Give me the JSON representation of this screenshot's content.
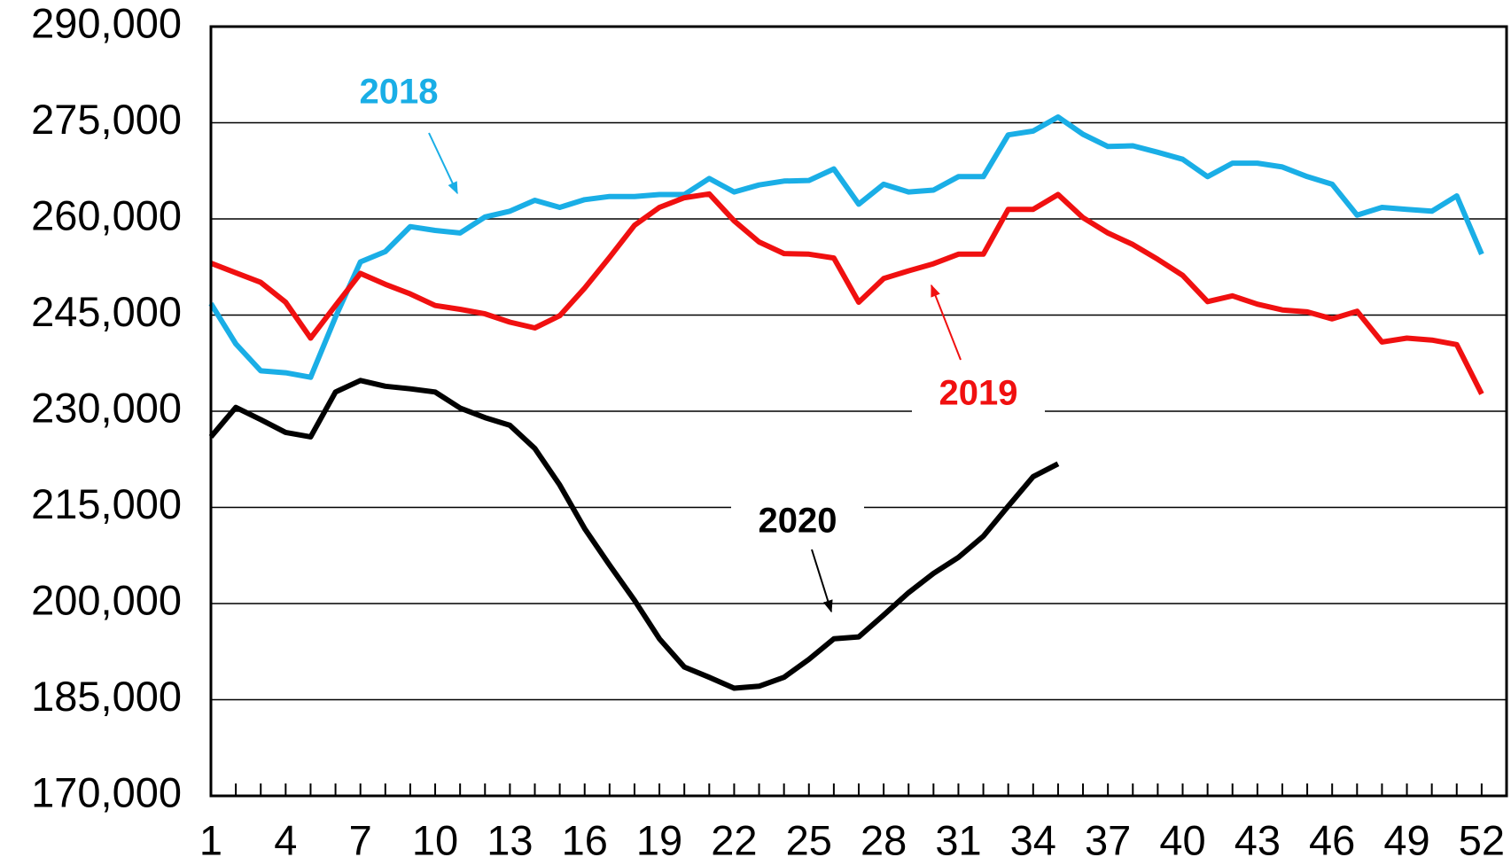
{
  "chart_data": {
    "type": "line",
    "x": [
      1,
      2,
      3,
      4,
      5,
      6,
      7,
      8,
      9,
      10,
      11,
      12,
      13,
      14,
      15,
      16,
      17,
      18,
      19,
      20,
      21,
      22,
      23,
      24,
      25,
      26,
      27,
      28,
      29,
      30,
      31,
      32,
      33,
      34,
      35,
      36,
      37,
      38,
      39,
      40,
      41,
      42,
      43,
      44,
      45,
      46,
      47,
      48,
      49,
      50,
      51,
      52
    ],
    "xlim": [
      1,
      53
    ],
    "xticks": [
      1,
      4,
      7,
      10,
      13,
      16,
      19,
      22,
      25,
      28,
      31,
      34,
      37,
      40,
      43,
      46,
      49,
      52
    ],
    "ylim": [
      170000,
      290000
    ],
    "yticks": [
      {
        "value": 170000,
        "label": "170,000"
      },
      {
        "value": 185000,
        "label": "185,000"
      },
      {
        "value": 200000,
        "label": "200,000"
      },
      {
        "value": 215000,
        "label": "215,000"
      },
      {
        "value": 230000,
        "label": "230,000"
      },
      {
        "value": 245000,
        "label": "245,000"
      },
      {
        "value": 260000,
        "label": "260,000"
      },
      {
        "value": 275000,
        "label": "275,000"
      },
      {
        "value": 290000,
        "label": "290,000"
      }
    ],
    "grid": true,
    "series": [
      {
        "name": "2018",
        "color": "#1aaee6",
        "values": [
          246800,
          240500,
          236300,
          236000,
          235300,
          244700,
          253300,
          254900,
          258800,
          258200,
          257800,
          260300,
          261200,
          262900,
          261800,
          263000,
          263500,
          263500,
          263800,
          263800,
          266300,
          264200,
          265300,
          265900,
          266000,
          267800,
          262300,
          265400,
          264200,
          264500,
          266600,
          266600,
          273100,
          273700,
          275900,
          273200,
          271300,
          271400,
          270400,
          269300,
          266600,
          268700,
          268700,
          268100,
          266600,
          265400,
          260600,
          261800,
          261500,
          261200,
          263600,
          254500
        ]
      },
      {
        "name": "2019",
        "color": "#f01010",
        "values": [
          253100,
          251600,
          250100,
          247000,
          241400,
          246500,
          251500,
          249800,
          248300,
          246500,
          245900,
          245200,
          243900,
          243000,
          244900,
          249200,
          254000,
          259000,
          261800,
          263300,
          263900,
          259700,
          256400,
          254600,
          254500,
          253900,
          247000,
          250700,
          251900,
          253000,
          254500,
          254500,
          261500,
          261500,
          263800,
          260200,
          257800,
          256000,
          253700,
          251200,
          247100,
          248000,
          246700,
          245800,
          245500,
          244400,
          245600,
          240800,
          241400,
          241100,
          240400,
          232700
        ]
      },
      {
        "name": "2020",
        "color": "#000000",
        "values": [
          226000,
          230600,
          228700,
          226700,
          226000,
          233000,
          234800,
          233900,
          233500,
          233000,
          230500,
          229000,
          227800,
          224200,
          218500,
          211700,
          206000,
          200500,
          194500,
          190100,
          188500,
          186800,
          187100,
          188500,
          191300,
          194500,
          194800,
          198200,
          201700,
          204700,
          207200,
          210500,
          215200,
          219800,
          221800,
          null,
          null,
          null,
          null,
          null,
          null,
          null,
          null,
          null,
          null,
          null,
          null,
          null,
          null,
          null,
          null,
          null
        ]
      }
    ]
  }
}
